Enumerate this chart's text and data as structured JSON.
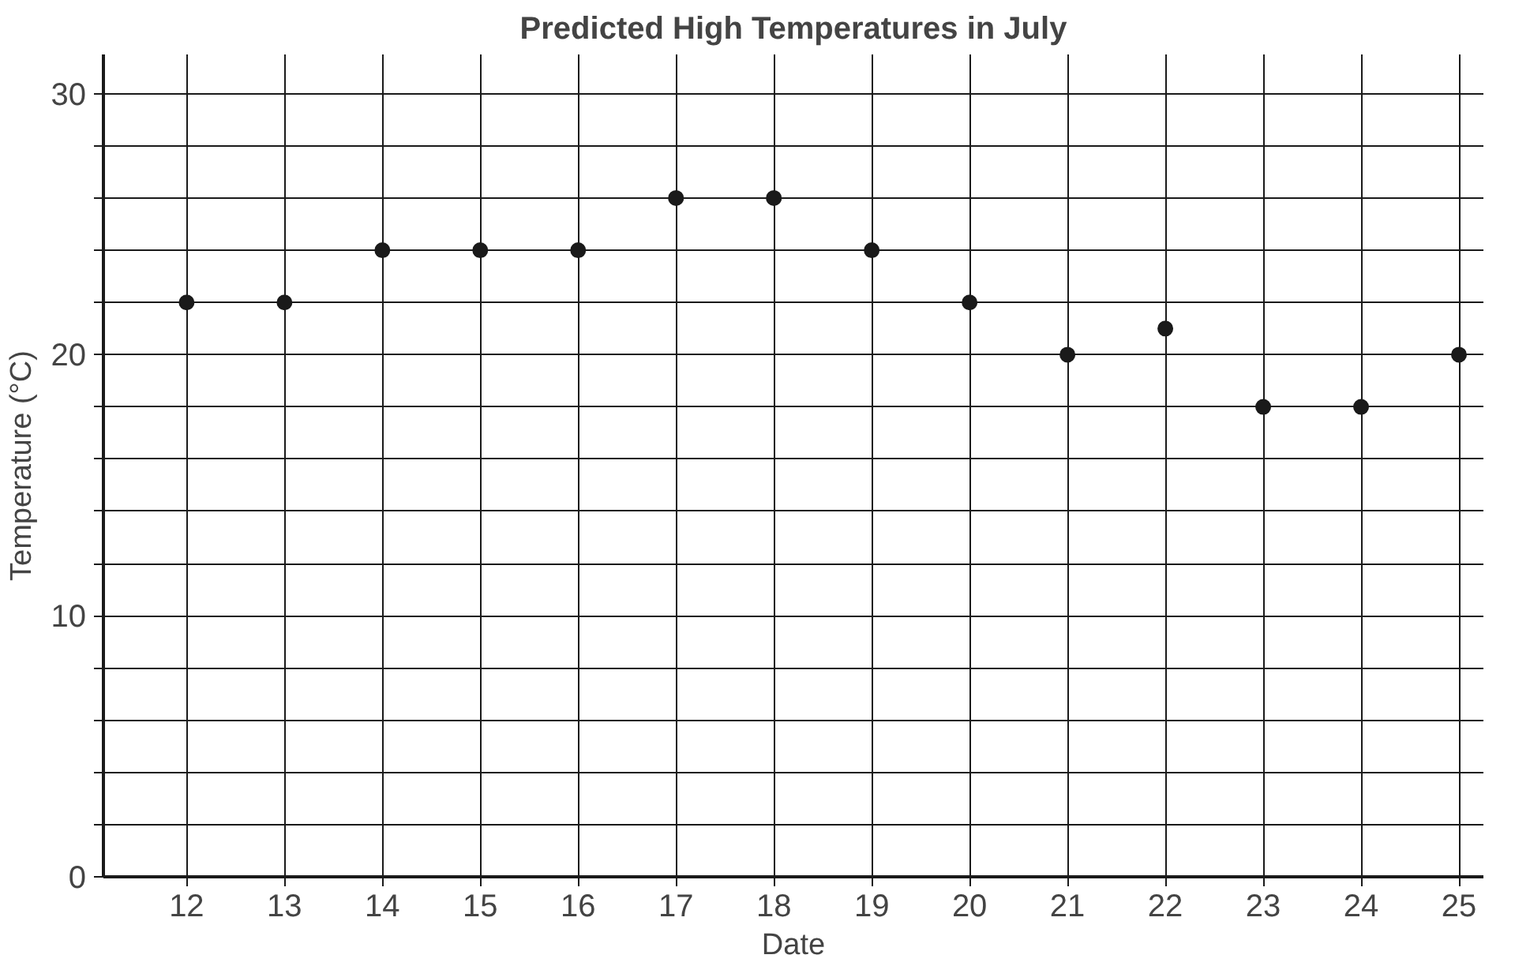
{
  "chart_data": {
    "type": "scatter",
    "title": "Predicted High Temperatures in July",
    "xlabel": "Date",
    "ylabel": "Temperature (°C)",
    "categories": [
      "12",
      "13",
      "14",
      "15",
      "16",
      "17",
      "18",
      "19",
      "20",
      "21",
      "22",
      "23",
      "24",
      "25"
    ],
    "series": [
      {
        "color": "#1a1a1a",
        "values": [
          22,
          22,
          24,
          24,
          24,
          26,
          26,
          24,
          22,
          20,
          21,
          18,
          18,
          20
        ]
      }
    ],
    "ylim": [
      0,
      31.5
    ],
    "yticks": [
      0,
      {
        "value": 2,
        "label": null
      },
      {
        "value": 4,
        "label": null
      },
      {
        "value": 6,
        "label": null
      },
      {
        "value": 8,
        "label": null
      },
      10,
      {
        "value": 12,
        "label": null
      },
      {
        "value": 14,
        "label": null
      },
      {
        "value": 16,
        "label": null
      },
      {
        "value": 18,
        "label": null
      },
      20,
      {
        "value": 22,
        "label": null
      },
      {
        "value": 24,
        "label": null
      },
      {
        "value": 26,
        "label": null
      },
      {
        "value": 28,
        "label": null
      },
      30
    ],
    "grid": true,
    "marker": "circle"
  }
}
